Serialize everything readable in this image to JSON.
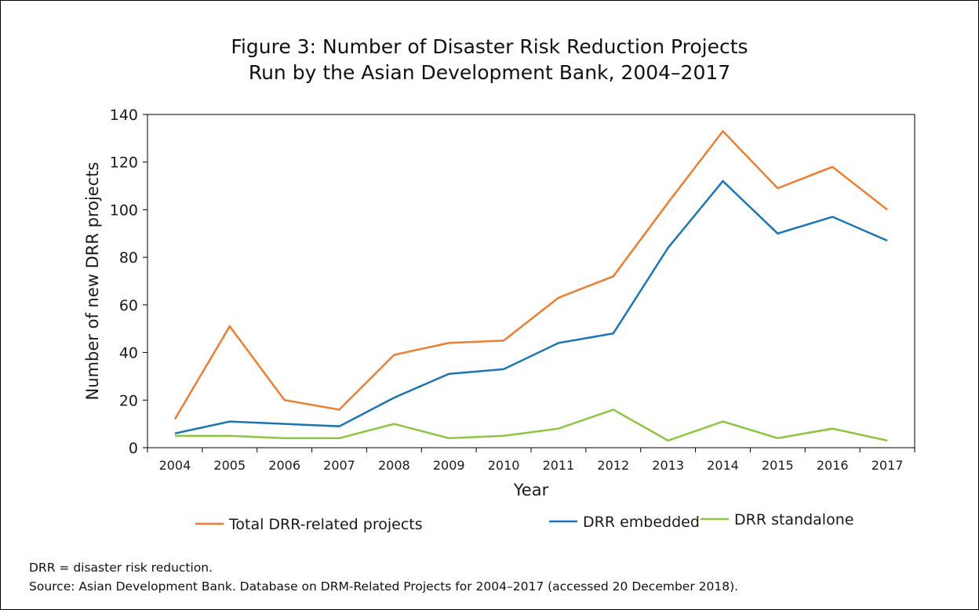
{
  "title_line1": "Figure 3: Number of Disaster Risk Reduction Projects",
  "title_line2": "Run by the Asian Development Bank, 2004–2017",
  "note": "DRR = disaster risk reduction.",
  "source": "Source: Asian Development Bank. Database on DRM-Related Projects for 2004–2017 (accessed 20 December 2018).",
  "chart_data": {
    "type": "line",
    "title": "Figure 3: Number of Disaster Risk Reduction Projects Run by the Asian Development Bank, 2004–2017",
    "xlabel": "Year",
    "ylabel": "Number of new DRR projects",
    "categories": [
      "2004",
      "2005",
      "2006",
      "2007",
      "2008",
      "2009",
      "2010",
      "2011",
      "2012",
      "2013",
      "2014",
      "2015",
      "2016",
      "2017"
    ],
    "ylim": [
      0,
      140
    ],
    "yticks": [
      0,
      20,
      40,
      60,
      80,
      100,
      120,
      140
    ],
    "grid": false,
    "legend_position": "bottom",
    "series": [
      {
        "name": "Total DRR-related projects",
        "color": "#ed7d31",
        "values": [
          12,
          51,
          20,
          16,
          39,
          44,
          45,
          63,
          72,
          103,
          133,
          109,
          118,
          100
        ]
      },
      {
        "name": "DRR embedded",
        "color": "#1b75b4",
        "values": [
          6,
          11,
          10,
          9,
          21,
          31,
          33,
          44,
          48,
          84,
          112,
          90,
          97,
          87
        ]
      },
      {
        "name": "DRR standalone",
        "color": "#8cc63f",
        "values": [
          5,
          5,
          4,
          4,
          10,
          4,
          5,
          8,
          16,
          3,
          11,
          4,
          8,
          3
        ]
      }
    ]
  }
}
